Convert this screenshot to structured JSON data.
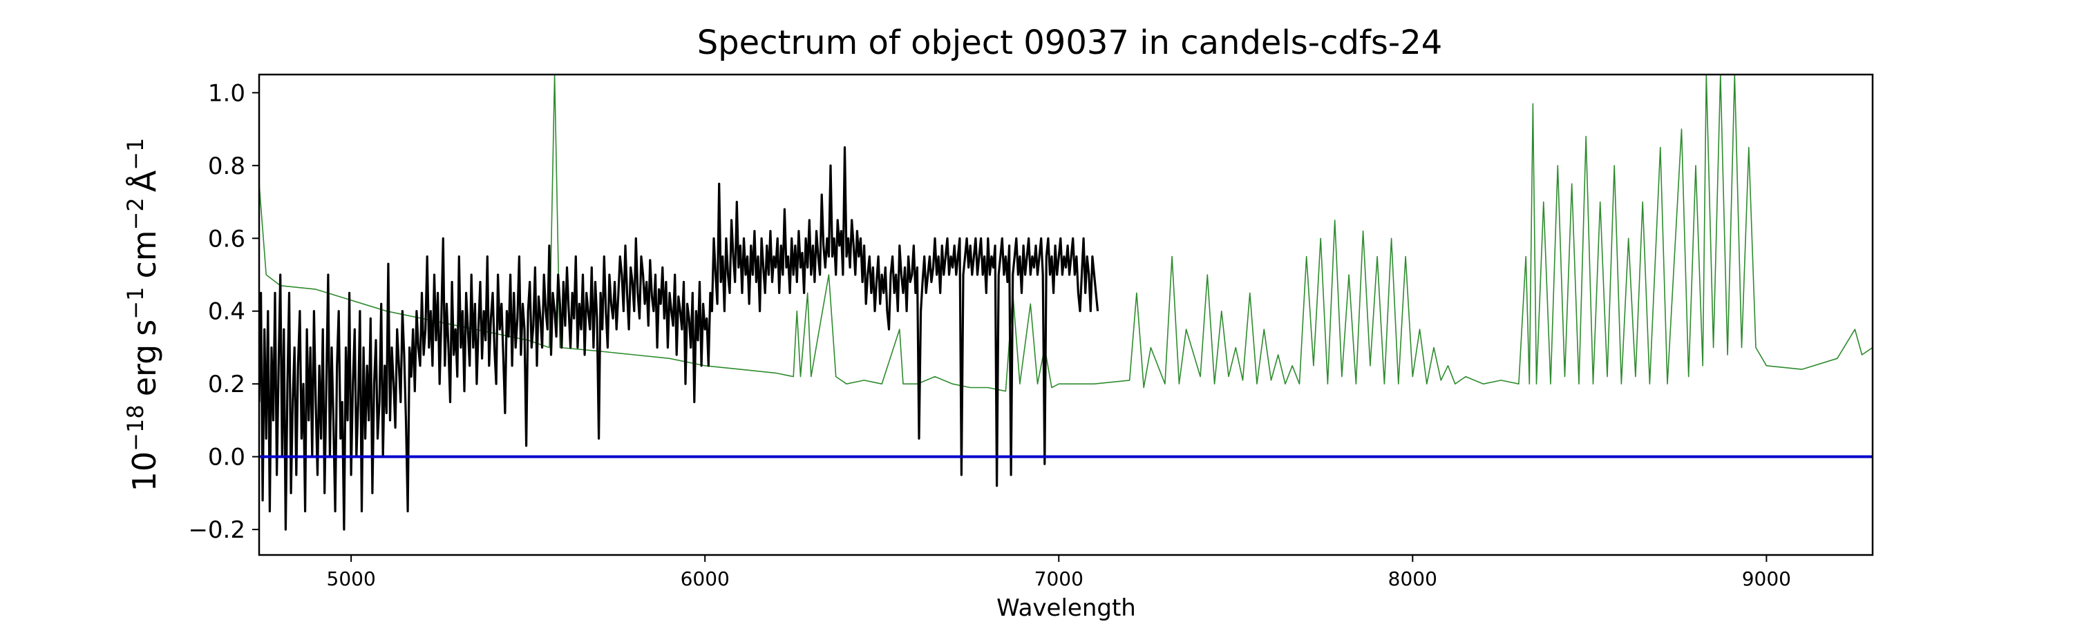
{
  "chart_data": {
    "type": "line",
    "title": "Spectrum of object 09037 in candels-cdfs-24",
    "xlabel": "Wavelength",
    "ylabel": {
      "base": "10",
      "exp_base": "−18",
      "erg": "erg",
      "s": "s",
      "exp_s": "−1",
      "cm": "cm",
      "exp_cm": "−2",
      "angstrom": "Å",
      "exp_angstrom": "−1"
    },
    "xlim": [
      4740,
      9300
    ],
    "ylim": [
      -0.27,
      1.05
    ],
    "x_ticks": [
      5000,
      6000,
      7000,
      8000,
      9000
    ],
    "x_tick_labels": [
      "5000",
      "6000",
      "7000",
      "8000",
      "9000"
    ],
    "y_ticks": [
      -0.2,
      0.0,
      0.2,
      0.4,
      0.6,
      0.8,
      1.0
    ],
    "y_tick_labels": [
      "−0.2",
      "0.0",
      "0.2",
      "0.4",
      "0.6",
      "0.8",
      "1.0"
    ],
    "grid": false,
    "legend": "none",
    "series": [
      {
        "role": "flux",
        "color": "#000000",
        "x_start": 4740,
        "x_step": 5,
        "values": [
          0.15,
          0.45,
          -0.12,
          0.35,
          0.05,
          0.4,
          -0.15,
          0.3,
          0.1,
          0.45,
          -0.05,
          0.25,
          0.5,
          0.0,
          0.35,
          -0.2,
          0.2,
          0.45,
          -0.1,
          0.15,
          0.3,
          -0.05,
          0.25,
          0.4,
          0.05,
          0.2,
          -0.15,
          0.35,
          0.1,
          0.3,
          0.0,
          0.4,
          0.15,
          -0.05,
          0.25,
          0.05,
          0.35,
          -0.1,
          0.2,
          0.5,
          0.0,
          0.3,
          0.1,
          -0.15,
          0.25,
          0.4,
          0.05,
          0.15,
          -0.2,
          0.3,
          0.1,
          0.45,
          -0.05,
          0.2,
          0.35,
          0.0,
          0.15,
          0.4,
          -0.15,
          0.3,
          0.05,
          0.25,
          0.1,
          0.38,
          -0.1,
          0.2,
          0.32,
          0.05,
          0.15,
          0.42,
          0.0,
          0.25,
          0.12,
          0.53,
          0.1,
          0.3,
          0.2,
          0.08,
          0.35,
          0.25,
          0.15,
          0.4,
          0.28,
          0.1,
          -0.15,
          0.3,
          0.22,
          0.35,
          0.18,
          0.4,
          0.3,
          0.25,
          0.45,
          0.28,
          0.35,
          0.55,
          0.3,
          0.4,
          0.25,
          0.5,
          0.32,
          0.45,
          0.2,
          0.38,
          0.6,
          0.25,
          0.42,
          0.3,
          0.15,
          0.48,
          0.28,
          0.35,
          0.22,
          0.55,
          0.3,
          0.4,
          0.18,
          0.45,
          0.35,
          0.25,
          0.5,
          0.3,
          0.42,
          0.2,
          0.36,
          0.48,
          0.27,
          0.4,
          0.32,
          0.55,
          0.25,
          0.38,
          0.45,
          0.3,
          0.2,
          0.5,
          0.35,
          0.42,
          0.28,
          0.12,
          0.4,
          0.33,
          0.5,
          0.25,
          0.45,
          0.3,
          0.38,
          0.55,
          0.28,
          0.42,
          0.35,
          0.03,
          0.4,
          0.48,
          0.3,
          0.36,
          0.52,
          0.25,
          0.44,
          0.38,
          0.3,
          0.5,
          0.4,
          0.35,
          0.58,
          0.28,
          0.45,
          0.4,
          0.33,
          0.5,
          0.42,
          0.3,
          0.48,
          0.36,
          0.52,
          0.4,
          0.3,
          0.45,
          0.38,
          0.55,
          0.3,
          0.42,
          0.35,
          0.5,
          0.28,
          0.45,
          0.4,
          0.35,
          0.52,
          0.3,
          0.48,
          0.38,
          0.05,
          0.45,
          0.35,
          0.55,
          0.4,
          0.3,
          0.5,
          0.42,
          0.38,
          0.48,
          0.35,
          0.44,
          0.55,
          0.5,
          0.4,
          0.58,
          0.45,
          0.35,
          0.52,
          0.48,
          0.4,
          0.6,
          0.45,
          0.38,
          0.55,
          0.5,
          0.42,
          0.48,
          0.36,
          0.54,
          0.44,
          0.4,
          0.5,
          0.3,
          0.46,
          0.42,
          0.52,
          0.38,
          0.48,
          0.3,
          0.45,
          0.4,
          0.36,
          0.5,
          0.28,
          0.44,
          0.4,
          0.35,
          0.48,
          0.2,
          0.42,
          0.38,
          0.3,
          0.45,
          0.15,
          0.4,
          0.32,
          0.48,
          0.25,
          0.42,
          0.35,
          0.38,
          0.25,
          0.45,
          0.4,
          0.6,
          0.5,
          0.42,
          0.75,
          0.48,
          0.55,
          0.4,
          0.6,
          0.5,
          0.45,
          0.65,
          0.55,
          0.48,
          0.7,
          0.52,
          0.58,
          0.45,
          0.6,
          0.5,
          0.55,
          0.42,
          0.58,
          0.5,
          0.62,
          0.48,
          0.55,
          0.4,
          0.6,
          0.52,
          0.45,
          0.58,
          0.5,
          0.62,
          0.48,
          0.55,
          0.52,
          0.6,
          0.45,
          0.58,
          0.5,
          0.68,
          0.52,
          0.55,
          0.45,
          0.6,
          0.5,
          0.58,
          0.48,
          0.62,
          0.52,
          0.56,
          0.45,
          0.6,
          0.52,
          0.65,
          0.5,
          0.58,
          0.48,
          0.62,
          0.55,
          0.5,
          0.72,
          0.58,
          0.52,
          0.6,
          0.55,
          0.8,
          0.55,
          0.6,
          0.5,
          0.65,
          0.58,
          0.62,
          0.5,
          0.85,
          0.55,
          0.6,
          0.52,
          0.65,
          0.58,
          0.5,
          0.62,
          0.55,
          0.6,
          0.48,
          0.58,
          0.42,
          0.5,
          0.55,
          0.45,
          0.52,
          0.4,
          0.48,
          0.55,
          0.42,
          0.5,
          0.45,
          0.52,
          0.4,
          0.35,
          0.5,
          0.55,
          0.45,
          0.5,
          0.4,
          0.58,
          0.5,
          0.45,
          0.52,
          0.4,
          0.55,
          0.48,
          0.5,
          0.58,
          0.45,
          0.52,
          0.05,
          0.4,
          0.48,
          0.55,
          0.45,
          0.5,
          0.55,
          0.48,
          0.52,
          0.6,
          0.5,
          0.55,
          0.45,
          0.58,
          0.5,
          0.55,
          0.6,
          0.5,
          0.55,
          0.52,
          0.58,
          0.5,
          0.55,
          0.6,
          -0.05,
          0.5,
          0.55,
          0.6,
          0.52,
          0.58,
          0.5,
          0.55,
          0.6,
          0.5,
          0.55,
          0.6,
          0.5,
          0.55,
          0.45,
          0.6,
          0.5,
          0.55,
          0.52,
          0.58,
          -0.08,
          0.5,
          0.55,
          0.6,
          0.5,
          0.55,
          0.48,
          0.58,
          -0.05,
          0.5,
          0.55,
          0.6,
          0.5,
          0.55,
          0.45,
          0.58,
          0.5,
          0.55,
          0.6,
          0.5,
          0.55,
          0.52,
          0.58,
          0.5,
          0.55,
          0.6,
          0.5,
          -0.02,
          0.55,
          0.6,
          0.5,
          0.55,
          0.45,
          0.58,
          0.5,
          0.55,
          0.6,
          0.5,
          0.55,
          0.52,
          0.58,
          0.5,
          0.55,
          0.6,
          0.5,
          0.55,
          0.45,
          0.4,
          0.5,
          0.6,
          0.45,
          0.55,
          0.5,
          0.4,
          0.55,
          0.5,
          0.45,
          0.4
        ]
      },
      {
        "role": "error",
        "color": "#2e8b2e",
        "points": [
          [
            4740,
            0.75
          ],
          [
            4760,
            0.5
          ],
          [
            4800,
            0.47
          ],
          [
            4900,
            0.46
          ],
          [
            5000,
            0.43
          ],
          [
            5100,
            0.4
          ],
          [
            5200,
            0.38
          ],
          [
            5300,
            0.36
          ],
          [
            5400,
            0.34
          ],
          [
            5500,
            0.32
          ],
          [
            5560,
            0.3
          ],
          [
            5575,
            1.05
          ],
          [
            5590,
            0.3
          ],
          [
            5700,
            0.29
          ],
          [
            5800,
            0.28
          ],
          [
            5900,
            0.27
          ],
          [
            6000,
            0.25
          ],
          [
            6100,
            0.24
          ],
          [
            6200,
            0.23
          ],
          [
            6250,
            0.22
          ],
          [
            6260,
            0.4
          ],
          [
            6270,
            0.22
          ],
          [
            6290,
            0.45
          ],
          [
            6300,
            0.22
          ],
          [
            6350,
            0.5
          ],
          [
            6370,
            0.22
          ],
          [
            6400,
            0.2
          ],
          [
            6450,
            0.21
          ],
          [
            6500,
            0.2
          ],
          [
            6550,
            0.35
          ],
          [
            6560,
            0.2
          ],
          [
            6600,
            0.2
          ],
          [
            6650,
            0.22
          ],
          [
            6700,
            0.2
          ],
          [
            6750,
            0.19
          ],
          [
            6800,
            0.19
          ],
          [
            6850,
            0.18
          ],
          [
            6870,
            0.45
          ],
          [
            6890,
            0.2
          ],
          [
            6920,
            0.42
          ],
          [
            6940,
            0.2
          ],
          [
            6960,
            0.3
          ],
          [
            6980,
            0.19
          ],
          [
            7000,
            0.2
          ],
          [
            7100,
            0.2
          ],
          [
            7200,
            0.21
          ],
          [
            7220,
            0.45
          ],
          [
            7240,
            0.19
          ],
          [
            7260,
            0.3
          ],
          [
            7300,
            0.2
          ],
          [
            7320,
            0.55
          ],
          [
            7340,
            0.2
          ],
          [
            7360,
            0.35
          ],
          [
            7400,
            0.22
          ],
          [
            7420,
            0.5
          ],
          [
            7440,
            0.2
          ],
          [
            7460,
            0.4
          ],
          [
            7480,
            0.22
          ],
          [
            7500,
            0.3
          ],
          [
            7520,
            0.21
          ],
          [
            7540,
            0.45
          ],
          [
            7560,
            0.2
          ],
          [
            7580,
            0.35
          ],
          [
            7600,
            0.21
          ],
          [
            7620,
            0.28
          ],
          [
            7640,
            0.2
          ],
          [
            7660,
            0.25
          ],
          [
            7680,
            0.2
          ],
          [
            7700,
            0.55
          ],
          [
            7720,
            0.25
          ],
          [
            7740,
            0.6
          ],
          [
            7760,
            0.2
          ],
          [
            7780,
            0.65
          ],
          [
            7800,
            0.22
          ],
          [
            7820,
            0.5
          ],
          [
            7840,
            0.2
          ],
          [
            7860,
            0.62
          ],
          [
            7880,
            0.25
          ],
          [
            7900,
            0.55
          ],
          [
            7920,
            0.2
          ],
          [
            7940,
            0.6
          ],
          [
            7960,
            0.2
          ],
          [
            7980,
            0.55
          ],
          [
            8000,
            0.22
          ],
          [
            8020,
            0.35
          ],
          [
            8040,
            0.2
          ],
          [
            8060,
            0.3
          ],
          [
            8080,
            0.21
          ],
          [
            8100,
            0.25
          ],
          [
            8120,
            0.2
          ],
          [
            8150,
            0.22
          ],
          [
            8200,
            0.2
          ],
          [
            8250,
            0.21
          ],
          [
            8300,
            0.2
          ],
          [
            8320,
            0.55
          ],
          [
            8330,
            0.2
          ],
          [
            8340,
            0.97
          ],
          [
            8350,
            0.2
          ],
          [
            8370,
            0.7
          ],
          [
            8390,
            0.2
          ],
          [
            8410,
            0.8
          ],
          [
            8430,
            0.22
          ],
          [
            8450,
            0.75
          ],
          [
            8470,
            0.2
          ],
          [
            8490,
            0.88
          ],
          [
            8510,
            0.2
          ],
          [
            8530,
            0.7
          ],
          [
            8550,
            0.22
          ],
          [
            8570,
            0.8
          ],
          [
            8590,
            0.2
          ],
          [
            8610,
            0.6
          ],
          [
            8630,
            0.22
          ],
          [
            8650,
            0.7
          ],
          [
            8670,
            0.2
          ],
          [
            8700,
            0.85
          ],
          [
            8720,
            0.2
          ],
          [
            8760,
            0.9
          ],
          [
            8780,
            0.22
          ],
          [
            8800,
            0.8
          ],
          [
            8820,
            0.25
          ],
          [
            8830,
            1.05
          ],
          [
            8850,
            0.3
          ],
          [
            8870,
            1.05
          ],
          [
            8890,
            0.28
          ],
          [
            8910,
            1.05
          ],
          [
            8930,
            0.3
          ],
          [
            8950,
            0.85
          ],
          [
            8970,
            0.3
          ],
          [
            9000,
            0.25
          ],
          [
            9100,
            0.24
          ],
          [
            9200,
            0.27
          ],
          [
            9250,
            0.35
          ],
          [
            9270,
            0.28
          ],
          [
            9300,
            0.3
          ]
        ]
      },
      {
        "role": "zero",
        "color": "#0000cc",
        "points": [
          [
            4740,
            0.0
          ],
          [
            9300,
            0.0
          ]
        ]
      }
    ]
  }
}
